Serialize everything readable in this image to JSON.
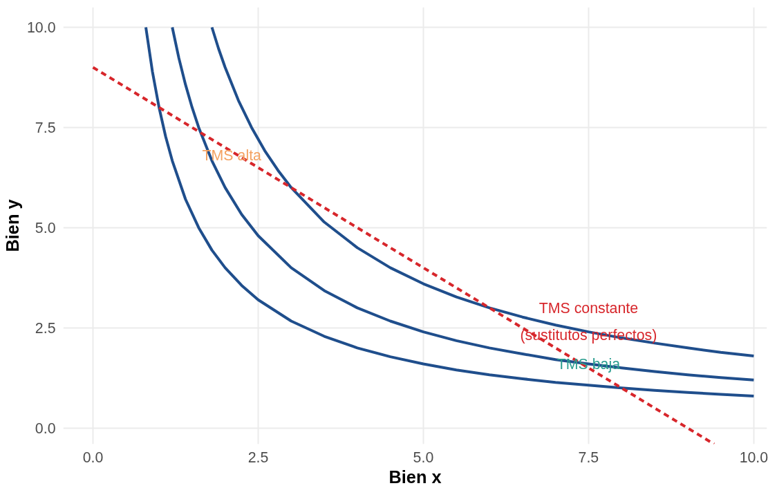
{
  "chart_data": {
    "type": "line",
    "xlabel": "Bien x",
    "ylabel": "Bien y",
    "xlim": [
      -0.45,
      10.2
    ],
    "ylim": [
      -0.4,
      10.5
    ],
    "xticks": [
      {
        "value": 0,
        "label": "0.0"
      },
      2.5,
      {
        "value": 5,
        "label": "5.0"
      },
      7.5,
      {
        "value": 10,
        "label": "10.0"
      }
    ],
    "yticks": [
      {
        "value": 0,
        "label": "0.0"
      },
      2.5,
      {
        "value": 5,
        "label": "5.0"
      },
      7.5,
      {
        "value": 10,
        "label": "10.0"
      }
    ],
    "grid": true,
    "marker": "none",
    "line_style": "solid",
    "series": [
      {
        "color": "#1f4e8c",
        "x": [
          0.8,
          0.9,
          1,
          1.1,
          1.2,
          1.4,
          1.6,
          1.8,
          2,
          2.25,
          2.5,
          3,
          3.5,
          4,
          4.5,
          5,
          5.5,
          6,
          6.5,
          7,
          7.5,
          8,
          8.5,
          9,
          9.5,
          10
        ],
        "values": [
          10,
          8.89,
          8,
          7.27,
          6.67,
          5.71,
          5,
          4.44,
          4,
          3.56,
          3.2,
          2.67,
          2.29,
          2,
          1.78,
          1.6,
          1.45,
          1.33,
          1.23,
          1.14,
          1.07,
          1,
          0.94,
          0.89,
          0.84,
          0.8
        ]
      },
      {
        "color": "#1f4e8c",
        "x": [
          1.2,
          1.3,
          1.4,
          1.5,
          1.6,
          1.8,
          2,
          2.25,
          2.5,
          3,
          3.5,
          4,
          4.5,
          5,
          5.5,
          6,
          6.5,
          7,
          7.5,
          8,
          8.5,
          9,
          9.5,
          10
        ],
        "values": [
          10,
          9.23,
          8.57,
          8,
          7.5,
          6.67,
          6,
          5.33,
          4.8,
          4,
          3.43,
          3,
          2.67,
          2.4,
          2.18,
          2,
          1.85,
          1.71,
          1.6,
          1.5,
          1.41,
          1.33,
          1.26,
          1.2
        ]
      },
      {
        "color": "#1f4e8c",
        "x": [
          1.8,
          1.9,
          2,
          2.2,
          2.4,
          2.6,
          2.8,
          3,
          3.5,
          4,
          4.5,
          5,
          5.5,
          6,
          6.5,
          7,
          7.5,
          8,
          8.5,
          9,
          9.5,
          10
        ],
        "values": [
          10,
          9.47,
          9,
          8.18,
          7.5,
          6.92,
          6.43,
          6,
          5.14,
          4.5,
          4,
          3.6,
          3.27,
          3,
          2.77,
          2.57,
          2.4,
          2.25,
          2.12,
          2,
          1.89,
          1.8
        ]
      },
      {
        "color": "#d7262b",
        "line_style": "dashed",
        "x": [
          0,
          9.4
        ],
        "values": [
          9,
          -0.4
        ]
      }
    ],
    "annotations": [
      "TMS alta",
      "TMS constante\n(sustitutos perfectos)",
      "TMS baja"
    ]
  }
}
